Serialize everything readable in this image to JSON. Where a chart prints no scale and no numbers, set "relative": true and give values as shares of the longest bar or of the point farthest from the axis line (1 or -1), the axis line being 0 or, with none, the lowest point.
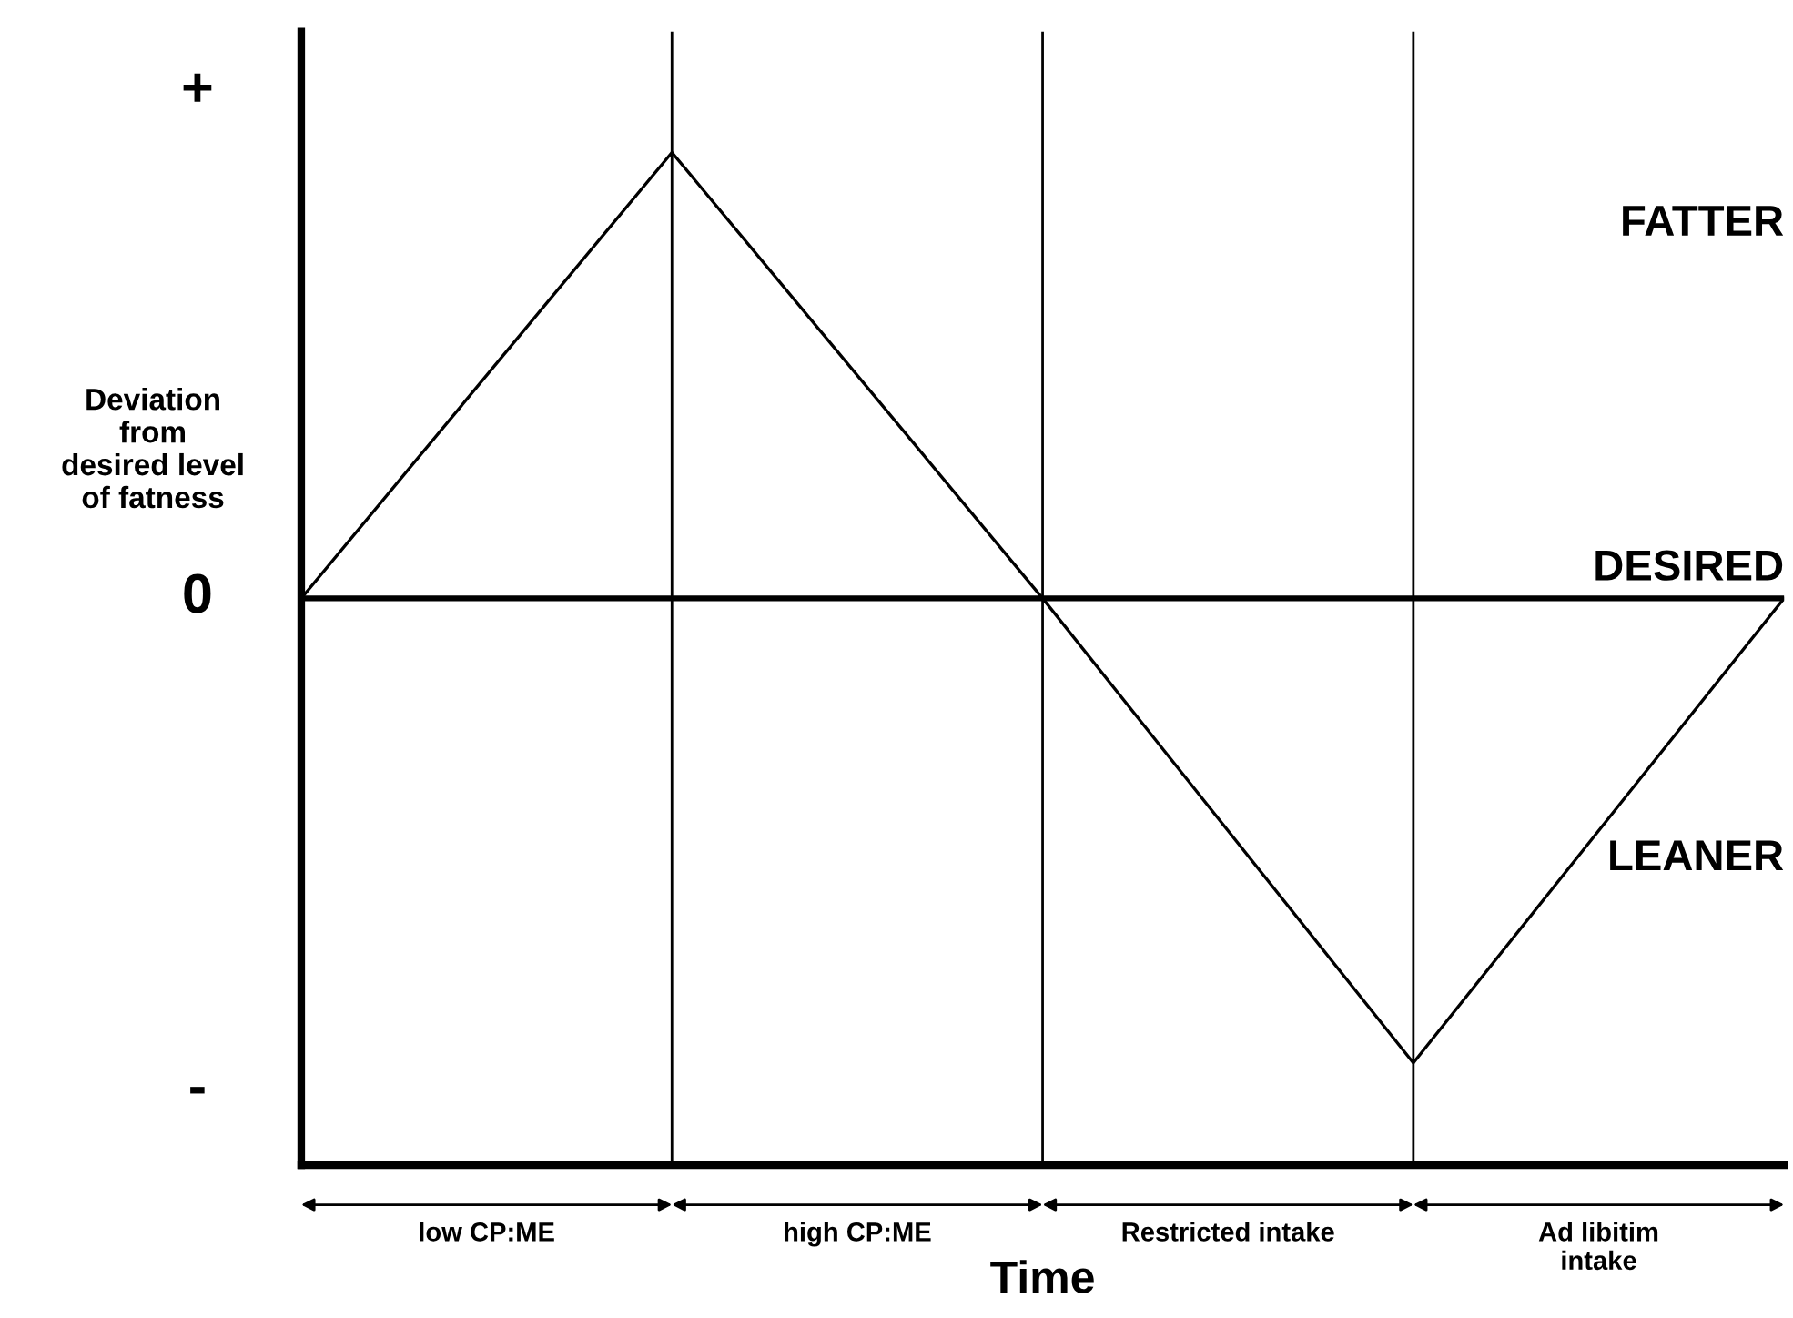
{
  "chart_data": {
    "type": "line",
    "relative": true,
    "categories": [
      null,
      null,
      null,
      null,
      null
    ],
    "series": [
      {
        "color": "#000000",
        "values": [
          0,
          0.96,
          0,
          -1,
          0
        ]
      }
    ],
    "xlabel": "Time",
    "ylabel": "Deviation\nfrom\ndesired level\nof fatness",
    "ref_lines": [
      {
        "axis": "y",
        "value": 0,
        "label": "DESIRED"
      }
    ],
    "annotations": [
      "+",
      "0",
      "-",
      "low CP:ME",
      "high CP:ME",
      "Restricted intake",
      "Ad libitim\nintake",
      "FATTER",
      "LEANER"
    ],
    "grid": "x",
    "legend": false,
    "marker": "none",
    "line_style": "solid"
  }
}
